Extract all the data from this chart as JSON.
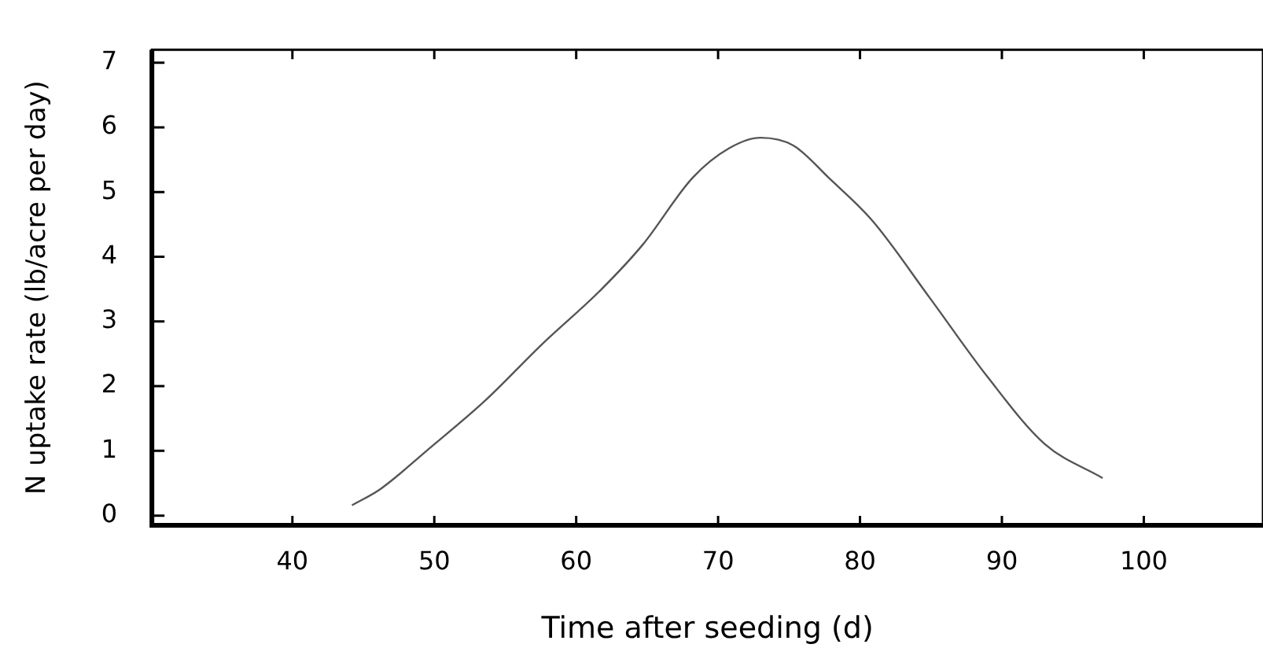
{
  "chart_data": {
    "type": "line",
    "xlabel": "Time after seeding (d)",
    "ylabel": "N uptake rate (lb/acre per day)",
    "xlim": [
      30.1,
      108.4
    ],
    "xticks": [
      40,
      50,
      60,
      70,
      80,
      90,
      100
    ],
    "ylim": [
      -0.15,
      7.2
    ],
    "yticks": [
      0,
      1,
      2,
      3,
      4,
      5,
      6,
      7
    ],
    "series": [
      {
        "color": "#555555",
        "x": [
          44.2,
          46.2,
          49.5,
          53.6,
          57.6,
          61.7,
          64.7,
          68.2,
          70.8,
          73.0,
          75.3,
          77.8,
          80.9,
          84.9,
          89.0,
          93.0,
          97.1
        ],
        "values": [
          0.16,
          0.41,
          1.01,
          1.78,
          2.65,
          3.48,
          4.19,
          5.22,
          5.68,
          5.84,
          5.72,
          5.22,
          4.55,
          3.37,
          2.14,
          1.11,
          0.58
        ]
      }
    ],
    "legend": false,
    "marker": "none",
    "line_style": "solid"
  }
}
